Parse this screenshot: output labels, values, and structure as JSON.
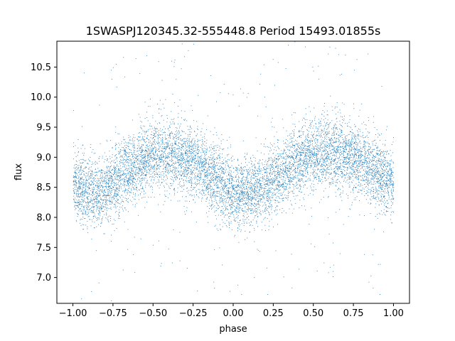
{
  "chart_data": {
    "type": "scatter",
    "title": "1SWASPJ120345.32-555448.8 Period 15493.01855s",
    "xlabel": "phase",
    "ylabel": "flux",
    "xlim": [
      -1.1,
      1.1
    ],
    "ylim": [
      6.57,
      10.93
    ],
    "x_ticks": [
      -1.0,
      -0.75,
      -0.5,
      -0.25,
      0.0,
      0.25,
      0.5,
      0.75,
      1.0
    ],
    "x_tick_labels": [
      "−1.00",
      "−0.75",
      "−0.50",
      "−0.25",
      "0.00",
      "0.25",
      "0.50",
      "0.75",
      "1.00"
    ],
    "y_ticks": [
      7.0,
      7.5,
      8.0,
      8.5,
      9.0,
      9.5,
      10.0,
      10.5
    ],
    "y_tick_labels": [
      "7.0",
      "7.5",
      "8.0",
      "8.5",
      "9.0",
      "9.5",
      "10.0",
      "10.5"
    ],
    "grid": false,
    "point_color": "#1f77b4",
    "series": [
      {
        "x": [
          -1.0,
          -0.95,
          -0.9,
          -0.85,
          -0.8,
          -0.75,
          -0.7,
          -0.65,
          -0.6,
          -0.55,
          -0.5,
          -0.45,
          -0.4,
          -0.35,
          -0.3,
          -0.25,
          -0.2,
          -0.15,
          -0.1,
          -0.05,
          0.0,
          0.05,
          0.1,
          0.15,
          0.2,
          0.25,
          0.3,
          0.35,
          0.4,
          0.45,
          0.5,
          0.55,
          0.6,
          0.65,
          0.7,
          0.75,
          0.8,
          0.85,
          0.9,
          0.95,
          1.0
        ],
        "y": [
          8.58,
          8.49,
          8.43,
          8.4,
          8.45,
          8.55,
          8.68,
          8.8,
          8.9,
          8.97,
          9.02,
          9.05,
          9.05,
          9.03,
          8.99,
          8.92,
          8.83,
          8.72,
          8.62,
          8.52,
          8.45,
          8.42,
          8.41,
          8.44,
          8.52,
          8.62,
          8.73,
          8.83,
          8.92,
          8.99,
          9.04,
          9.07,
          9.07,
          9.06,
          9.04,
          9.0,
          8.93,
          8.84,
          8.74,
          8.65,
          8.58
        ],
        "spread": [
          0.28,
          0.28,
          0.28,
          0.28,
          0.28,
          0.29,
          0.29,
          0.29,
          0.29,
          0.29,
          0.29,
          0.3,
          0.3,
          0.3,
          0.3,
          0.3,
          0.29,
          0.29,
          0.29,
          0.28,
          0.28,
          0.28,
          0.28,
          0.28,
          0.28,
          0.29,
          0.29,
          0.29,
          0.29,
          0.29,
          0.29,
          0.3,
          0.3,
          0.3,
          0.3,
          0.3,
          0.29,
          0.29,
          0.29,
          0.28,
          0.28
        ]
      }
    ]
  }
}
